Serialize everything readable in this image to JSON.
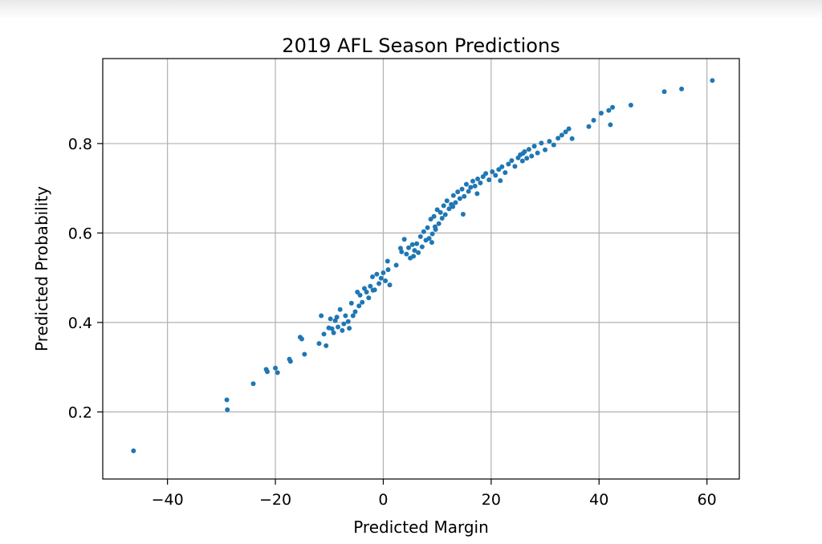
{
  "chart_data": {
    "type": "scatter",
    "title": "2019 AFL Season Predictions",
    "xlabel": "Predicted Margin",
    "ylabel": "Predicted Probability",
    "xlim": [
      -52,
      66
    ],
    "ylim": [
      0.05,
      0.99
    ],
    "xticks": [
      -40,
      -20,
      0,
      20,
      40,
      60
    ],
    "xtick_labels": [
      "−40",
      "−20",
      "0",
      "20",
      "40",
      "60"
    ],
    "yticks": [
      0.2,
      0.4,
      0.6,
      0.8
    ],
    "ytick_labels": [
      "0.2",
      "0.4",
      "0.6",
      "0.8"
    ],
    "grid": true,
    "marker_color": "#1f77b4",
    "x": [
      -46.3,
      -29,
      -28.9,
      -24.1,
      -21.7,
      -21.5,
      -20,
      -19.6,
      -17.4,
      -17.2,
      -15.4,
      -15.1,
      -14.6,
      -11.9,
      -11.5,
      -11,
      -10.6,
      -10.1,
      -9.8,
      -9.5,
      -9.2,
      -8.9,
      -8.6,
      -8.4,
      -8.0,
      -7.6,
      -7.3,
      -7.0,
      -6.5,
      -6.3,
      -5.9,
      -5.6,
      -5.2,
      -4.8,
      -4.5,
      -4.3,
      -3.9,
      -3.5,
      -3.1,
      -2.7,
      -2.4,
      -2.0,
      -1.6,
      -1.2,
      -0.8,
      -0.4,
      0.0,
      0.4,
      0.8,
      1.2,
      2.4,
      3.4,
      3.9,
      4.3,
      4.7,
      5.0,
      5.4,
      5.8,
      6.2,
      6.5,
      6.9,
      7.2,
      7.5,
      7.9,
      8.2,
      8.5,
      8.8,
      9.1,
      9.4,
      9.7,
      10.0,
      10.3,
      10.6,
      10.9,
      11.2,
      11.5,
      11.8,
      12.2,
      12.6,
      13.0,
      13.4,
      13.8,
      14.2,
      14.6,
      15.0,
      15.4,
      15.8,
      16.2,
      16.6,
      17.0,
      17.5,
      18.0,
      18.5,
      19.0,
      19.6,
      20.2,
      20.8,
      21.4,
      22.0,
      22.6,
      23.2,
      23.8,
      24.4,
      25.0,
      25.4,
      25.8,
      26.2,
      26.6,
      27.0,
      27.5,
      28.0,
      28.6,
      29.3,
      30.0,
      30.8,
      31.6,
      32.4,
      33.1,
      33.8,
      34.4,
      35.0,
      38.1,
      39.0,
      40.4,
      41.8,
      42.1,
      42.5,
      45.9,
      52.1,
      55.3,
      61.0,
      0.9,
      5.6,
      9.0,
      12.9,
      17.4,
      21.7,
      25.9,
      9.6,
      14.8,
      3.2,
      -1.9
    ],
    "y": [
      0.113,
      0.227,
      0.205,
      0.263,
      0.295,
      0.29,
      0.298,
      0.288,
      0.318,
      0.313,
      0.367,
      0.363,
      0.329,
      0.353,
      0.415,
      0.374,
      0.348,
      0.388,
      0.408,
      0.386,
      0.377,
      0.404,
      0.412,
      0.39,
      0.429,
      0.382,
      0.397,
      0.415,
      0.402,
      0.387,
      0.443,
      0.415,
      0.424,
      0.468,
      0.437,
      0.461,
      0.445,
      0.476,
      0.468,
      0.455,
      0.481,
      0.502,
      0.473,
      0.508,
      0.487,
      0.499,
      0.511,
      0.493,
      0.537,
      0.484,
      0.528,
      0.558,
      0.586,
      0.553,
      0.567,
      0.544,
      0.574,
      0.561,
      0.576,
      0.556,
      0.592,
      0.569,
      0.603,
      0.584,
      0.612,
      0.588,
      0.631,
      0.598,
      0.637,
      0.608,
      0.652,
      0.621,
      0.646,
      0.633,
      0.661,
      0.641,
      0.672,
      0.654,
      0.664,
      0.684,
      0.668,
      0.692,
      0.677,
      0.698,
      0.682,
      0.709,
      0.693,
      0.702,
      0.716,
      0.705,
      0.721,
      0.712,
      0.726,
      0.733,
      0.719,
      0.737,
      0.729,
      0.742,
      0.748,
      0.735,
      0.754,
      0.762,
      0.749,
      0.768,
      0.775,
      0.761,
      0.782,
      0.767,
      0.787,
      0.772,
      0.794,
      0.779,
      0.801,
      0.786,
      0.805,
      0.797,
      0.812,
      0.819,
      0.826,
      0.833,
      0.811,
      0.838,
      0.852,
      0.868,
      0.874,
      0.842,
      0.881,
      0.886,
      0.916,
      0.922,
      0.941,
      0.518,
      0.548,
      0.579,
      0.659,
      0.688,
      0.717,
      0.778,
      0.614,
      0.642,
      0.566,
      0.472
    ]
  }
}
